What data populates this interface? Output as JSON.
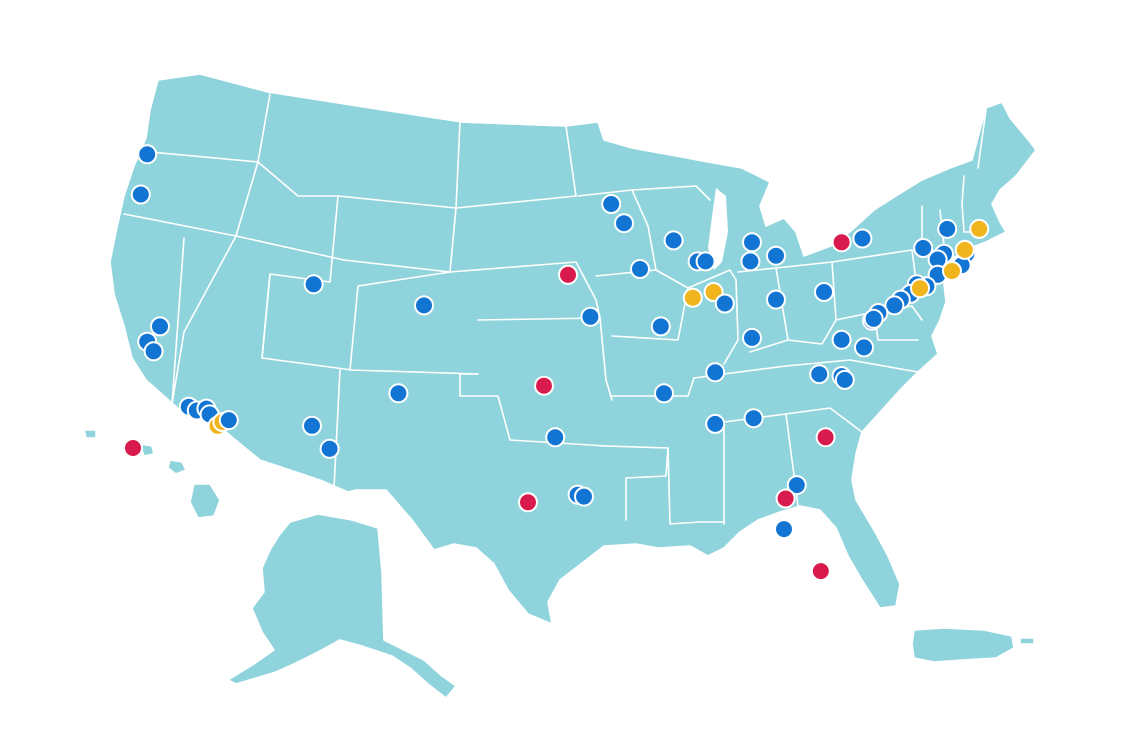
{
  "map": {
    "land_color": "#8fd4dc",
    "border_color": "#ffffff",
    "marker_categories": [
      {
        "key": "blue",
        "color": "#1375d3"
      },
      {
        "key": "gold",
        "color": "#f0b41c"
      },
      {
        "key": "red",
        "color": "#d81b4c"
      }
    ],
    "markers": [
      {
        "cat": "blue",
        "lon": -122.3,
        "lat": 47.6
      },
      {
        "cat": "blue",
        "lon": -122.7,
        "lat": 45.5
      },
      {
        "cat": "blue",
        "lon": -122.3,
        "lat": 37.8
      },
      {
        "cat": "blue",
        "lon": -121.5,
        "lat": 38.6
      },
      {
        "cat": "blue",
        "lon": -121.9,
        "lat": 37.3
      },
      {
        "cat": "blue",
        "lon": -119.7,
        "lat": 34.4
      },
      {
        "cat": "blue",
        "lon": -119.2,
        "lat": 34.2
      },
      {
        "cat": "blue",
        "lon": -118.6,
        "lat": 34.3
      },
      {
        "cat": "blue",
        "lon": -118.4,
        "lat": 34.0
      },
      {
        "cat": "gold",
        "lon": -117.9,
        "lat": 33.4
      },
      {
        "cat": "gold",
        "lon": -117.6,
        "lat": 33.6
      },
      {
        "cat": "blue",
        "lon": -117.2,
        "lat": 33.7
      },
      {
        "cat": "blue",
        "lon": -111.9,
        "lat": 40.8
      },
      {
        "cat": "blue",
        "lon": -105.0,
        "lat": 39.7
      },
      {
        "cat": "blue",
        "lon": -112.0,
        "lat": 33.4
      },
      {
        "cat": "blue",
        "lon": -110.9,
        "lat": 32.2
      },
      {
        "cat": "blue",
        "lon": -106.6,
        "lat": 35.1
      },
      {
        "cat": "red",
        "lon": -96.0,
        "lat": 41.3
      },
      {
        "cat": "blue",
        "lon": -94.6,
        "lat": 39.1
      },
      {
        "cat": "red",
        "lon": -97.5,
        "lat": 35.5
      },
      {
        "cat": "blue",
        "lon": -96.8,
        "lat": 32.8
      },
      {
        "cat": "red",
        "lon": -98.5,
        "lat": 29.4
      },
      {
        "cat": "blue",
        "lon": -95.4,
        "lat": 29.8
      },
      {
        "cat": "blue",
        "lon": -95.0,
        "lat": 29.7
      },
      {
        "cat": "blue",
        "lon": -93.3,
        "lat": 45.0
      },
      {
        "cat": "blue",
        "lon": -92.5,
        "lat": 44.0
      },
      {
        "cat": "blue",
        "lon": -89.4,
        "lat": 43.1
      },
      {
        "cat": "blue",
        "lon": -91.5,
        "lat": 41.6
      },
      {
        "cat": "blue",
        "lon": -87.9,
        "lat": 42.0
      },
      {
        "cat": "blue",
        "lon": -87.4,
        "lat": 42.0
      },
      {
        "cat": "gold",
        "lon": -88.2,
        "lat": 40.1
      },
      {
        "cat": "gold",
        "lon": -86.9,
        "lat": 40.4
      },
      {
        "cat": "blue",
        "lon": -86.2,
        "lat": 39.8
      },
      {
        "cat": "blue",
        "lon": -90.2,
        "lat": 38.6
      },
      {
        "cat": "blue",
        "lon": -84.5,
        "lat": 43.0
      },
      {
        "cat": "blue",
        "lon": -84.6,
        "lat": 42.0
      },
      {
        "cat": "blue",
        "lon": -83.0,
        "lat": 42.3
      },
      {
        "cat": "blue",
        "lon": -83.0,
        "lat": 40.0
      },
      {
        "cat": "blue",
        "lon": -84.5,
        "lat": 38.0
      },
      {
        "cat": "blue",
        "lon": -86.8,
        "lat": 36.2
      },
      {
        "cat": "blue",
        "lon": -90.0,
        "lat": 35.1
      },
      {
        "cat": "blue",
        "lon": -84.4,
        "lat": 33.8
      },
      {
        "cat": "blue",
        "lon": -86.8,
        "lat": 33.5
      },
      {
        "cat": "blue",
        "lon": -80.0,
        "lat": 40.4
      },
      {
        "cat": "blue",
        "lon": -78.9,
        "lat": 37.9
      },
      {
        "cat": "blue",
        "lon": -77.5,
        "lat": 37.5
      },
      {
        "cat": "blue",
        "lon": -80.3,
        "lat": 36.1
      },
      {
        "cat": "blue",
        "lon": -78.9,
        "lat": 36.0
      },
      {
        "cat": "blue",
        "lon": -78.7,
        "lat": 35.8
      },
      {
        "cat": "red",
        "lon": -79.9,
        "lat": 32.8
      },
      {
        "cat": "blue",
        "lon": -81.7,
        "lat": 30.3
      },
      {
        "cat": "red",
        "lon": -82.4,
        "lat": 29.6
      },
      {
        "cat": "blue",
        "lon": -82.5,
        "lat": 28.0
      },
      {
        "cat": "red",
        "lon": -80.2,
        "lat": 25.8
      },
      {
        "cat": "red",
        "lon": -78.9,
        "lat": 43.0
      },
      {
        "cat": "blue",
        "lon": -77.6,
        "lat": 43.2
      },
      {
        "cat": "blue",
        "lon": -73.8,
        "lat": 42.7
      },
      {
        "cat": "blue",
        "lon": -72.5,
        "lat": 42.4
      },
      {
        "cat": "blue",
        "lon": -72.9,
        "lat": 42.1
      },
      {
        "cat": "blue",
        "lon": -71.1,
        "lat": 42.4
      },
      {
        "cat": "blue",
        "lon": -71.4,
        "lat": 41.8
      },
      {
        "cat": "blue",
        "lon": -72.3,
        "lat": 43.7
      },
      {
        "cat": "blue",
        "lon": -72.9,
        "lat": 41.3
      },
      {
        "cat": "blue",
        "lon": -73.6,
        "lat": 40.7
      },
      {
        "cat": "gold",
        "lon": -71.2,
        "lat": 42.6
      },
      {
        "cat": "gold",
        "lon": -72.0,
        "lat": 41.5
      },
      {
        "cat": "gold",
        "lon": -70.3,
        "lat": 43.7
      },
      {
        "cat": "blue",
        "lon": -74.2,
        "lat": 40.8
      },
      {
        "cat": "blue",
        "lon": -74.6,
        "lat": 40.3
      },
      {
        "cat": "gold",
        "lon": -74.0,
        "lat": 40.6
      },
      {
        "cat": "blue",
        "lon": -75.2,
        "lat": 40.0
      },
      {
        "cat": "blue",
        "lon": -75.6,
        "lat": 39.7
      },
      {
        "cat": "blue",
        "lon": -76.6,
        "lat": 39.3
      },
      {
        "cat": "blue",
        "lon": -77.0,
        "lat": 38.9
      },
      {
        "cat": "blue",
        "lon": -76.9,
        "lat": 39.0
      },
      {
        "cat": "red",
        "lon": -157.8,
        "lat": 21.3
      }
    ]
  }
}
